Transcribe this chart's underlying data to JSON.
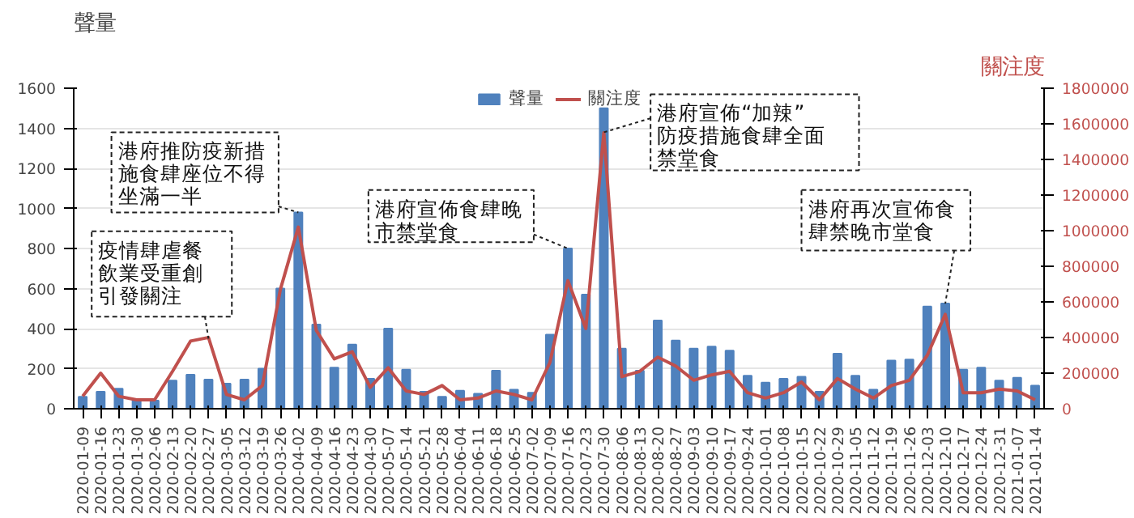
{
  "chart_data": {
    "type": "bar",
    "ylabel": "聲量",
    "y2label": "關注度",
    "categories": [
      "2020-01-09",
      "2020-01-16",
      "2020-01-23",
      "2020-01-30",
      "2020-02-06",
      "2020-02-13",
      "2020-02-20",
      "2020-02-27",
      "2020-03-05",
      "2020-03-12",
      "2020-03-19",
      "2020-03-26",
      "2020-04-02",
      "2020-04-09",
      "2020-04-16",
      "2020-04-23",
      "2020-04-30",
      "2020-05-07",
      "2020-05-14",
      "2020-05-21",
      "2020-05-28",
      "2020-06-04",
      "2020-06-11",
      "2020-06-18",
      "2020-06-25",
      "2020-07-02",
      "2020-07-09",
      "2020-07-16",
      "2020-07-23",
      "2020-07-30",
      "2020-08-06",
      "2020-08-13",
      "2020-08-20",
      "2020-08-27",
      "2020-09-03",
      "2020-09-10",
      "2020-09-17",
      "2020-09-24",
      "2020-10-01",
      "2020-10-08",
      "2020-10-15",
      "2020-10-22",
      "2020-10-29",
      "2020-11-05",
      "2020-11-12",
      "2020-11-19",
      "2020-11-26",
      "2020-12-03",
      "2020-12-10",
      "2020-12-17",
      "2020-12-24",
      "2020-12-31",
      "2021-01-07",
      "2021-01-14"
    ],
    "series": [
      {
        "name": "聲量",
        "color": "#4f81bd",
        "values": [
          60,
          85,
          100,
          45,
          40,
          140,
          170,
          145,
          125,
          145,
          200,
          600,
          980,
          420,
          205,
          320,
          150,
          400,
          195,
          85,
          60,
          90,
          75,
          190,
          95,
          80,
          370,
          800,
          570,
          1500,
          300,
          190,
          440,
          340,
          300,
          310,
          290,
          165,
          130,
          150,
          160,
          85,
          275,
          165,
          95,
          240,
          245,
          510,
          525,
          195,
          205,
          140,
          155,
          115
        ]
      },
      {
        "name": "關注度",
        "type": "line",
        "axis": "y2",
        "color": "#c0504d",
        "values": [
          70000,
          200000,
          70000,
          50000,
          50000,
          210000,
          380000,
          400000,
          80000,
          50000,
          130000,
          670000,
          1020000,
          440000,
          280000,
          320000,
          120000,
          230000,
          100000,
          80000,
          130000,
          50000,
          60000,
          100000,
          80000,
          50000,
          260000,
          720000,
          450000,
          1550000,
          180000,
          210000,
          290000,
          240000,
          160000,
          190000,
          210000,
          90000,
          60000,
          90000,
          150000,
          50000,
          170000,
          110000,
          60000,
          130000,
          160000,
          300000,
          530000,
          90000,
          90000,
          110000,
          100000,
          50000
        ]
      }
    ],
    "ylim": [
      0,
      1600
    ],
    "yticks": [
      0,
      200,
      400,
      600,
      800,
      1000,
      1200,
      1400,
      1600
    ],
    "y2lim": [
      0,
      1800000
    ],
    "y2ticks": [
      0,
      200000,
      400000,
      600000,
      800000,
      1000000,
      1200000,
      1400000,
      1600000,
      1800000
    ],
    "grid": "y",
    "legend": "top",
    "annotations": [
      {
        "text": "疫情肆虐餐飲業受重創引發關注",
        "x": "2020-02-27",
        "y": 350
      },
      {
        "text": "港府推防疫新措施食肆座位不得坐滿一半",
        "x": "2020-04-02",
        "y": 980
      },
      {
        "text": "港府宣佈食肆晚市禁堂食",
        "x": "2020-07-16",
        "y": 800
      },
      {
        "text": "港府宣佈“加辣”防疫措施食肆全面禁堂食",
        "x": "2020-07-30",
        "y": 1380
      },
      {
        "text": "港府再次宣佈食肆禁晚市堂食",
        "x": "2020-12-10",
        "y": 525
      }
    ]
  }
}
